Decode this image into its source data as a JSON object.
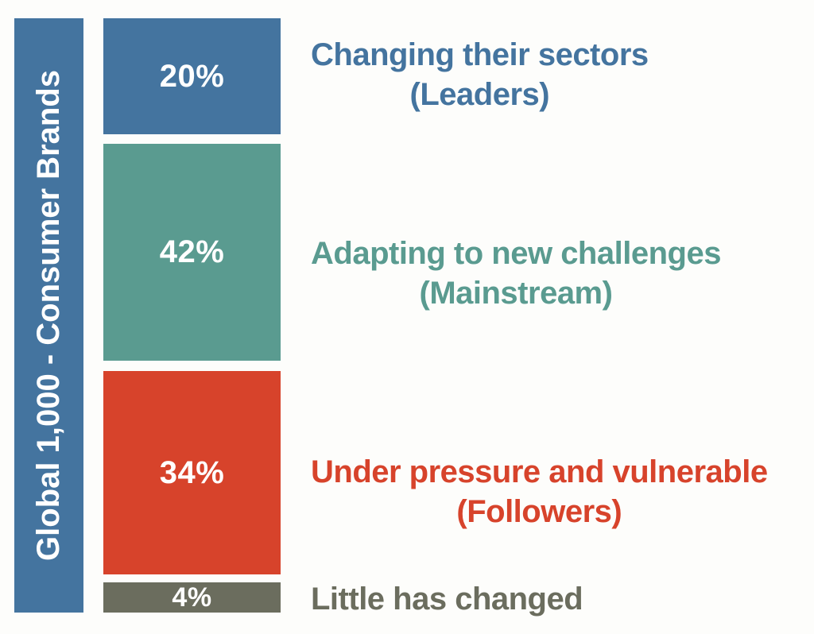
{
  "chart_data": {
    "type": "bar",
    "stacked": true,
    "orientation": "vertical",
    "title": "Global 1,000 - Consumer Brands",
    "categories": [
      "Changing their sectors (Leaders)",
      "Adapting to new challenges (Mainstream)",
      "Under pressure and vulnerable (Followers)",
      "Little has changed"
    ],
    "values": [
      20,
      42,
      34,
      4
    ],
    "value_unit": "%",
    "axis_bar_color": "#44749f",
    "background_color": "#fdfdfb",
    "segments": [
      {
        "pct_label": "20%",
        "value": 20,
        "label_line1": "Changing their sectors",
        "label_line2": "(Leaders)",
        "color": "#44749f"
      },
      {
        "pct_label": "42%",
        "value": 42,
        "label_line1": "Adapting to new challenges",
        "label_line2": "(Mainstream)",
        "color": "#5a9b90"
      },
      {
        "pct_label": "34%",
        "value": 34,
        "label_line1": "Under pressure and vulnerable",
        "label_line2": "(Followers)",
        "color": "#d7432b"
      },
      {
        "pct_label": "4%",
        "value": 4,
        "label_line1": "Little has changed",
        "color": "#6b6d5e"
      }
    ]
  }
}
